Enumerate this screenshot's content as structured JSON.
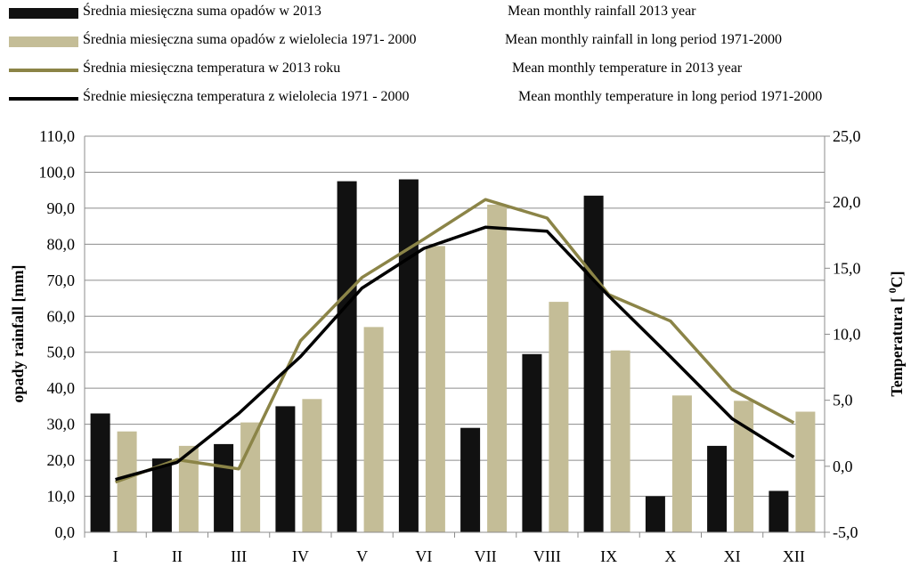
{
  "legend": [
    {
      "pl": "Średnia miesięczna suma opadów  w 2013",
      "en": "Mean monthly rainfall  2013 year"
    },
    {
      "pl": "Średnia miesięczna suma opadów z wielolecia 1971- 2000",
      "en": "Mean monthly rainfall  in long period 1971-2000"
    },
    {
      "pl": "Średnia miesięczna temperatura w 2013 roku",
      "en": "Mean monthly temperature in 2013 year"
    },
    {
      "pl": "Średnie miesięczna temperatura z wielolecia 1971 - 2000",
      "en": "Mean monthly temperature in long period  1971-2000"
    }
  ],
  "chart_data": {
    "type": "bar",
    "categories": [
      "I",
      "II",
      "III",
      "IV",
      "V",
      "VI",
      "VII",
      "VIII",
      "IX",
      "X",
      "XI",
      "XII"
    ],
    "ylabel": "opady  rainfall  [mm]",
    "y2label": "Temperatura [ 0C]",
    "ylim": [
      0,
      110
    ],
    "y2lim": [
      -5,
      25
    ],
    "yticks": [
      "0,0",
      "10,0",
      "20,0",
      "30,0",
      "40,0",
      "50,0",
      "60,0",
      "70,0",
      "80,0",
      "90,0",
      "100,0",
      "110,0"
    ],
    "y2ticks": [
      "-5,0",
      "0,0",
      "5,0",
      "10,0",
      "15,0",
      "20,0",
      "25,0"
    ],
    "grid": true,
    "legend_position": "top",
    "series": [
      {
        "type": "bar",
        "axis": "left",
        "color": "#111111",
        "values": [
          33.0,
          20.5,
          24.5,
          35.0,
          97.5,
          98.0,
          29.0,
          49.5,
          93.5,
          10.0,
          24.0,
          11.5
        ]
      },
      {
        "type": "bar",
        "axis": "left",
        "color": "#c4bd97",
        "values": [
          28.0,
          24.0,
          30.5,
          37.0,
          57.0,
          79.5,
          91.0,
          64.0,
          50.5,
          38.0,
          36.5,
          33.5
        ]
      },
      {
        "type": "line",
        "axis": "right",
        "color": "#8b8447",
        "values": [
          -1.2,
          0.5,
          -0.2,
          9.5,
          14.3,
          17.2,
          20.2,
          18.8,
          13.0,
          11.0,
          5.8,
          3.3
        ]
      },
      {
        "type": "line",
        "axis": "right",
        "color": "#000000",
        "values": [
          -1.0,
          0.3,
          4.0,
          8.3,
          13.5,
          16.5,
          18.1,
          17.8,
          12.9,
          8.3,
          3.6,
          0.7
        ]
      }
    ]
  }
}
